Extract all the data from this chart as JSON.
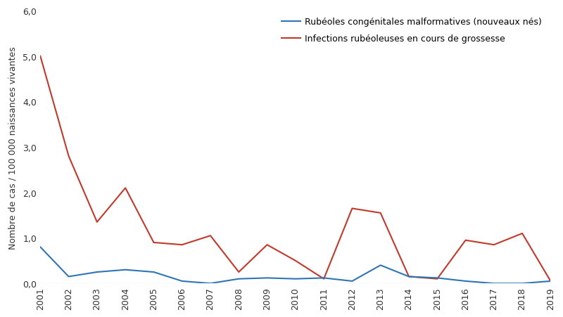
{
  "years": [
    2001,
    2002,
    2003,
    2004,
    2005,
    2006,
    2007,
    2008,
    2009,
    2010,
    2011,
    2012,
    2013,
    2014,
    2015,
    2016,
    2017,
    2018,
    2019
  ],
  "red_values": [
    5.0,
    2.8,
    1.35,
    2.1,
    0.9,
    0.85,
    1.05,
    0.25,
    0.85,
    0.5,
    0.1,
    1.65,
    1.55,
    0.15,
    0.1,
    0.95,
    0.85,
    1.1,
    0.05
  ],
  "blue_values": [
    0.8,
    0.15,
    0.25,
    0.3,
    0.25,
    0.05,
    0.0,
    0.1,
    0.12,
    0.1,
    0.12,
    0.05,
    0.4,
    0.15,
    0.12,
    0.05,
    0.0,
    0.0,
    0.05
  ],
  "red_label": "Infections rubéoleuses en cours de grossesse",
  "blue_label": "Rubéoles congénitales malformatives (nouveaux nés)",
  "ylabel": "Nombre de cas / 100 000 naissances vivantes",
  "ylim": [
    0,
    6.0
  ],
  "yticks": [
    0.0,
    1.0,
    2.0,
    3.0,
    4.0,
    5.0,
    6.0
  ],
  "ytick_labels": [
    "0,0",
    "1,0",
    "2,0",
    "3,0",
    "4,0",
    "5,0",
    "6,0"
  ],
  "red_color": "#c0392b",
  "blue_color": "#2e75b6",
  "background_color": "#ffffff",
  "fig_width": 8.0,
  "fig_height": 4.52
}
